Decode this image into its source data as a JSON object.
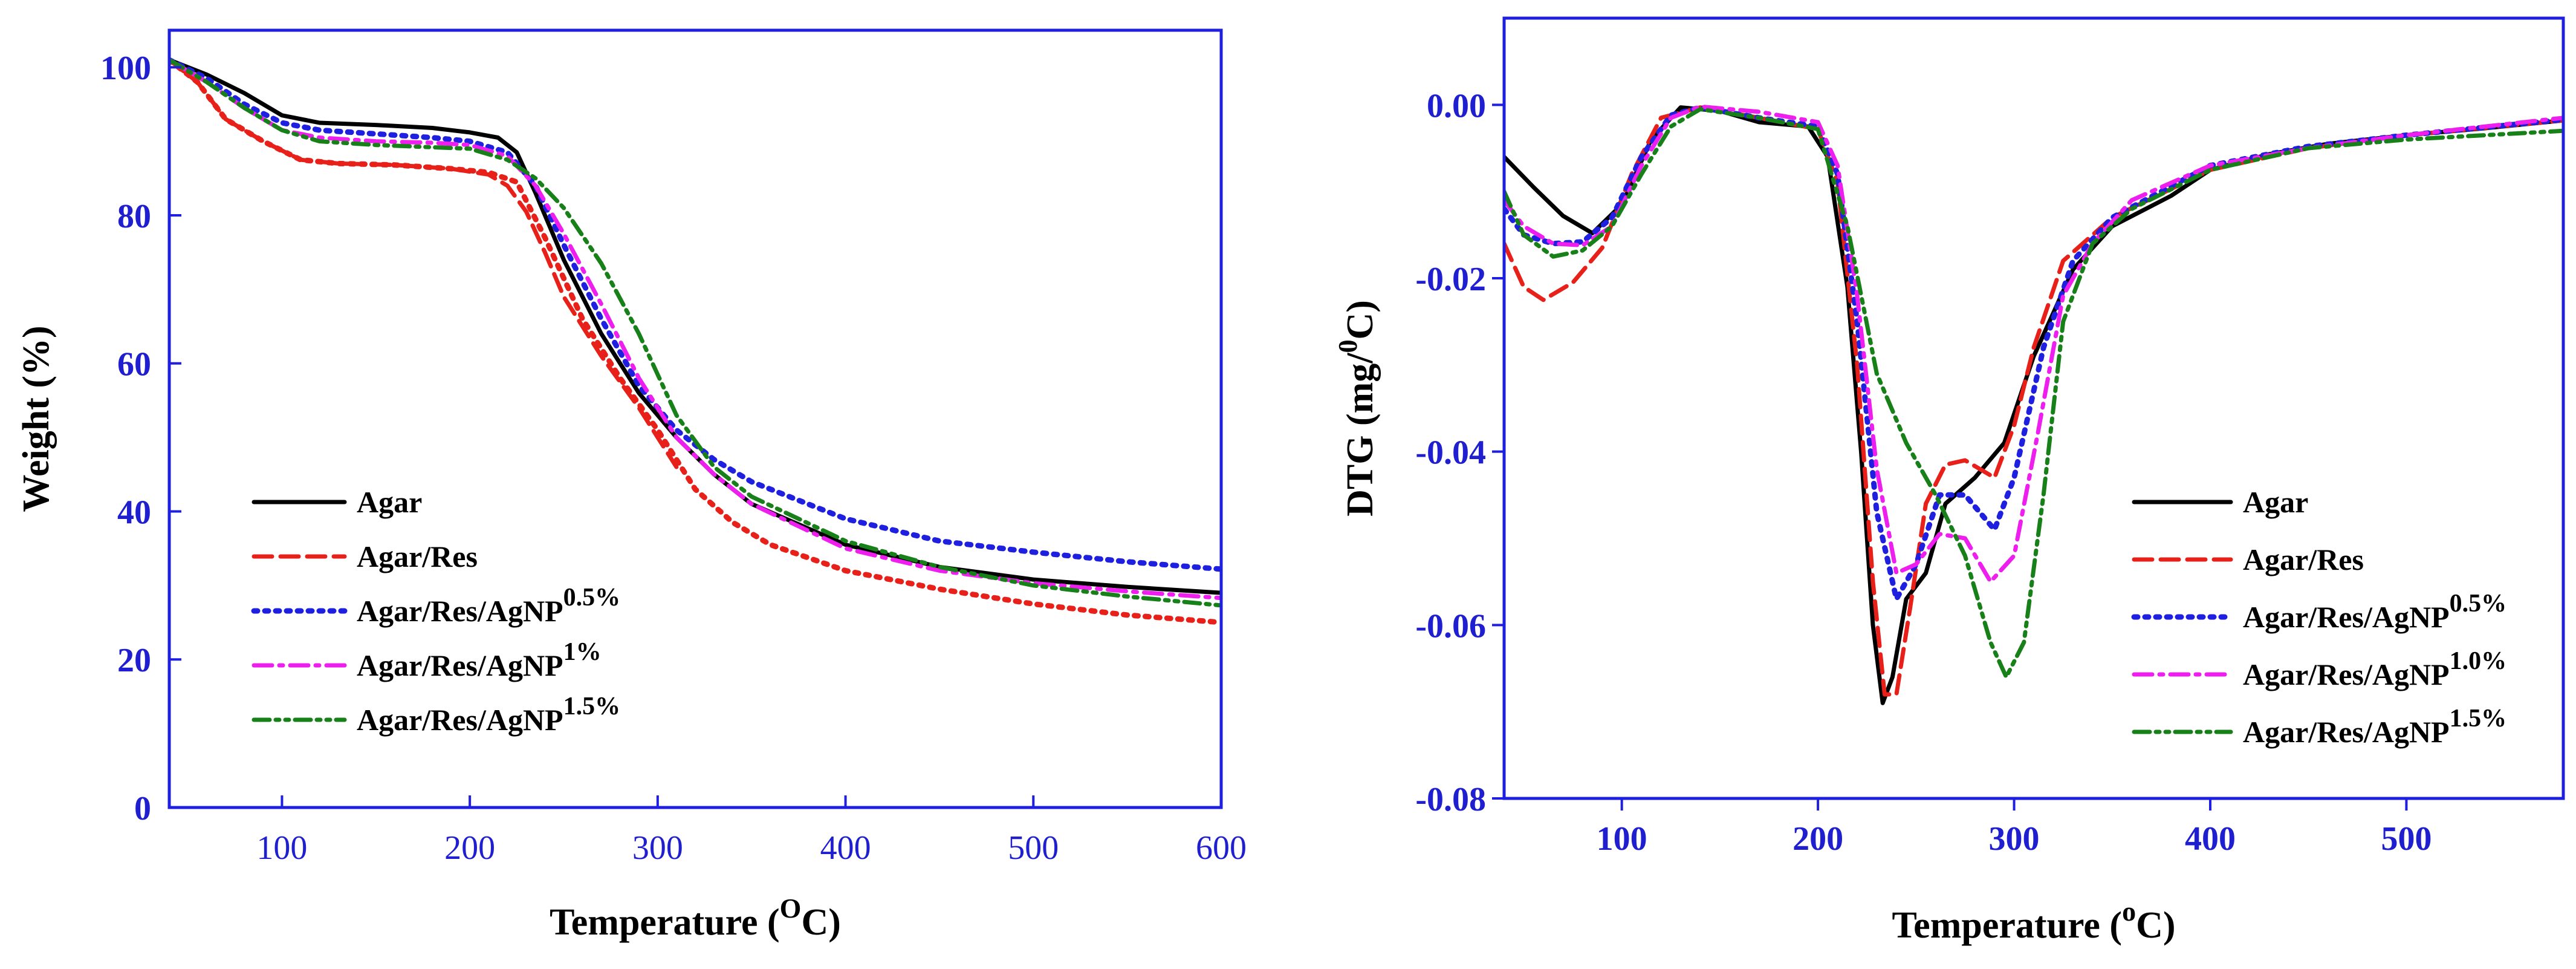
{
  "chart_data": [
    {
      "type": "line",
      "xlabel": "Temperature (",
      "xlabel_sup": "O",
      "xlabel_tail": "C)",
      "ylabel": "Weight (%)",
      "xlim": [
        40,
        600
      ],
      "ylim": [
        0,
        105
      ],
      "xticks": [
        100,
        200,
        300,
        400,
        500,
        600
      ],
      "yticks": [
        0,
        20,
        40,
        60,
        80,
        100
      ],
      "grid": false,
      "legend_position": "bottom-left",
      "series": [
        {
          "name": "Agar",
          "sup": "",
          "color": "#000000",
          "style": "solid",
          "x": [
            40,
            60,
            80,
            100,
            120,
            150,
            180,
            200,
            215,
            225,
            235,
            250,
            270,
            290,
            310,
            330,
            350,
            400,
            450,
            500,
            550,
            600
          ],
          "y": [
            101,
            99,
            96.5,
            93.5,
            92.5,
            92.2,
            91.8,
            91.2,
            90.5,
            88.5,
            83,
            74,
            64,
            56,
            50,
            45,
            41,
            35.5,
            32.5,
            30.8,
            29.8,
            29
          ]
        },
        {
          "name": "Agar/Res",
          "sup": "",
          "color": "#e8201a",
          "style": "dashed",
          "x": [
            40,
            55,
            70,
            90,
            110,
            130,
            160,
            190,
            210,
            220,
            230,
            240,
            250,
            270,
            290,
            310
          ],
          "y": [
            101,
            98,
            93,
            90,
            87.5,
            87,
            86.8,
            86.3,
            85.5,
            84,
            80.5,
            75,
            69,
            61,
            54,
            46
          ]
        },
        {
          "name": "Agar/Res",
          "sup": "",
          "color": "#e8201a",
          "style": "dotted",
          "x": [
            40,
            55,
            70,
            90,
            110,
            130,
            160,
            190,
            210,
            225,
            240,
            260,
            280,
            300,
            320,
            340,
            360,
            400,
            450,
            500,
            550,
            600
          ],
          "y": [
            101,
            98,
            93,
            90,
            87.5,
            87,
            86.8,
            86.3,
            85.8,
            84.5,
            77,
            66,
            58,
            51,
            43,
            38.5,
            35.5,
            32,
            29.5,
            27.5,
            26,
            25
          ]
        },
        {
          "name": "Agar/Res/AgNP",
          "sup": "0.5%",
          "color": "#1f1fe0",
          "style": "dotted",
          "x": [
            40,
            60,
            80,
            100,
            120,
            150,
            180,
            200,
            220,
            235,
            250,
            270,
            290,
            310,
            330,
            350,
            400,
            450,
            500,
            550,
            600
          ],
          "y": [
            101,
            98.5,
            95,
            92.5,
            91.5,
            91,
            90.5,
            90,
            88.5,
            84,
            76,
            66,
            57,
            51,
            47,
            44,
            39,
            36,
            34.5,
            33.2,
            32.2
          ]
        },
        {
          "name": "Agar/Res/AgNP",
          "sup": "1%",
          "color": "#ee1fee",
          "style": "dashdot",
          "x": [
            40,
            60,
            80,
            100,
            120,
            150,
            180,
            200,
            220,
            235,
            250,
            270,
            290,
            310,
            330,
            350,
            400,
            450,
            500,
            550,
            600
          ],
          "y": [
            101,
            98,
            94.5,
            91.5,
            90.5,
            90,
            89.8,
            89.5,
            88,
            84,
            77.5,
            68,
            58,
            50,
            45,
            41,
            35,
            32,
            30.3,
            29.2,
            28.3
          ]
        },
        {
          "name": "Agar/Res/AgNP",
          "sup": "1.5%",
          "color": "#188018",
          "style": "dashdotdot",
          "x": [
            40,
            60,
            80,
            100,
            120,
            150,
            180,
            200,
            220,
            235,
            250,
            270,
            290,
            310,
            330,
            350,
            400,
            450,
            500,
            550,
            600
          ],
          "y": [
            101,
            98,
            94.5,
            91.5,
            90,
            89.5,
            89.2,
            89,
            87.5,
            85,
            81,
            73.5,
            64,
            53,
            46,
            42,
            36,
            32.5,
            30,
            28.5,
            27.3
          ]
        }
      ]
    },
    {
      "type": "line",
      "xlabel": "Temperature (",
      "xlabel_sup": "o",
      "xlabel_tail": "C)",
      "ylabel": "DTG (mg/",
      "ylabel_sup": "0",
      "ylabel_tail": "C)",
      "xlim": [
        40,
        580
      ],
      "ylim": [
        -0.08,
        0.01
      ],
      "xticks": [
        100,
        200,
        300,
        400,
        500
      ],
      "yticks": [
        0.0,
        -0.02,
        -0.04,
        -0.06,
        -0.08
      ],
      "ytick_labels": [
        "0.00",
        "-0.02",
        "-0.04",
        "-0.06",
        "-0.08"
      ],
      "grid": false,
      "legend_position": "bottom-right",
      "series": [
        {
          "name": "Agar",
          "sup": "",
          "color": "#000000",
          "style": "solid",
          "x": [
            40,
            55,
            70,
            85,
            100,
            115,
            130,
            150,
            170,
            195,
            205,
            215,
            222,
            228,
            233,
            238,
            245,
            255,
            265,
            280,
            295,
            310,
            330,
            350,
            380,
            400,
            430,
            460,
            500,
            540,
            580
          ],
          "y": [
            -0.006,
            -0.0095,
            -0.0128,
            -0.0148,
            -0.0115,
            -0.004,
            -0.0003,
            -0.0007,
            -0.002,
            -0.0025,
            -0.006,
            -0.021,
            -0.04,
            -0.06,
            -0.069,
            -0.066,
            -0.057,
            -0.054,
            -0.046,
            -0.043,
            -0.039,
            -0.029,
            -0.019,
            -0.014,
            -0.0105,
            -0.0075,
            -0.0057,
            -0.0045,
            -0.0035,
            -0.0027,
            -0.0018
          ]
        },
        {
          "name": "Agar/Res",
          "sup": "",
          "color": "#e8201a",
          "style": "dashed",
          "x": [
            40,
            50,
            60,
            75,
            90,
            105,
            120,
            140,
            170,
            200,
            210,
            220,
            228,
            234,
            240,
            247,
            255,
            265,
            275,
            290,
            300,
            310,
            325,
            350,
            400,
            450,
            500,
            580
          ],
          "y": [
            -0.016,
            -0.021,
            -0.0225,
            -0.0205,
            -0.0165,
            -0.008,
            -0.0015,
            -0.0003,
            -0.0015,
            -0.0028,
            -0.009,
            -0.03,
            -0.055,
            -0.068,
            -0.068,
            -0.058,
            -0.046,
            -0.0415,
            -0.041,
            -0.043,
            -0.037,
            -0.028,
            -0.018,
            -0.013,
            -0.0075,
            -0.005,
            -0.0035,
            -0.0018
          ]
        },
        {
          "name": "Agar/Res/AgNP",
          "sup": "0.5%",
          "color": "#1f1fe0",
          "style": "dotted",
          "x": [
            40,
            50,
            65,
            80,
            95,
            110,
            125,
            140,
            170,
            200,
            210,
            220,
            230,
            240,
            250,
            262,
            275,
            290,
            300,
            315,
            330,
            350,
            400,
            450,
            500,
            580
          ],
          "y": [
            -0.012,
            -0.015,
            -0.016,
            -0.0158,
            -0.013,
            -0.006,
            -0.0012,
            -0.0003,
            -0.0015,
            -0.0025,
            -0.008,
            -0.025,
            -0.047,
            -0.057,
            -0.053,
            -0.045,
            -0.045,
            -0.049,
            -0.043,
            -0.028,
            -0.018,
            -0.013,
            -0.007,
            -0.0048,
            -0.0035,
            -0.0017
          ]
        },
        {
          "name": "Agar/Res/AgNP",
          "sup": "1.0%",
          "color": "#ee1fee",
          "style": "dashdot",
          "x": [
            40,
            50,
            65,
            80,
            95,
            110,
            125,
            140,
            170,
            200,
            210,
            220,
            230,
            240,
            250,
            262,
            275,
            288,
            300,
            312,
            325,
            340,
            360,
            400,
            450,
            500,
            580
          ],
          "y": [
            -0.011,
            -0.014,
            -0.016,
            -0.0162,
            -0.014,
            -0.007,
            -0.0015,
            -0.0002,
            -0.0008,
            -0.002,
            -0.007,
            -0.022,
            -0.042,
            -0.054,
            -0.053,
            -0.0495,
            -0.05,
            -0.055,
            -0.052,
            -0.038,
            -0.022,
            -0.016,
            -0.011,
            -0.007,
            -0.005,
            -0.0035,
            -0.0015
          ]
        },
        {
          "name": "Agar/Res/AgNP",
          "sup": "1.5%",
          "color": "#188018",
          "style": "dashdotdot",
          "x": [
            40,
            50,
            65,
            80,
            95,
            110,
            125,
            140,
            170,
            200,
            215,
            230,
            245,
            260,
            275,
            288,
            296,
            305,
            315,
            325,
            340,
            360,
            400,
            450,
            500,
            580
          ],
          "y": [
            -0.01,
            -0.015,
            -0.0175,
            -0.0168,
            -0.014,
            -0.008,
            -0.0025,
            -0.0005,
            -0.0015,
            -0.0028,
            -0.014,
            -0.031,
            -0.039,
            -0.045,
            -0.052,
            -0.062,
            -0.066,
            -0.062,
            -0.045,
            -0.025,
            -0.016,
            -0.012,
            -0.0075,
            -0.005,
            -0.004,
            -0.003
          ]
        }
      ]
    }
  ],
  "legends": [
    [
      {
        "name": "Agar",
        "sup": ""
      },
      {
        "name": "Agar/Res",
        "sup": ""
      },
      {
        "name": "Agar/Res/AgNP",
        "sup": "0.5%"
      },
      {
        "name": "Agar/Res/AgNP",
        "sup": "1%"
      },
      {
        "name": "Agar/Res/AgNP",
        "sup": "1.5%"
      }
    ],
    [
      {
        "name": "Agar",
        "sup": ""
      },
      {
        "name": "Agar/Res",
        "sup": ""
      },
      {
        "name": "Agar/Res/AgNP",
        "sup": "0.5%"
      },
      {
        "name": "Agar/Res/AgNP",
        "sup": "1.0%"
      },
      {
        "name": "Agar/Res/AgNP",
        "sup": "1.5%"
      }
    ]
  ],
  "colors": {
    "axis": "#1f1fe0",
    "tick_text": "#1f1fd0",
    "black": "#000000",
    "red": "#e8201a",
    "blue": "#1f1fe0",
    "magenta": "#ee1fee",
    "green": "#188018"
  }
}
